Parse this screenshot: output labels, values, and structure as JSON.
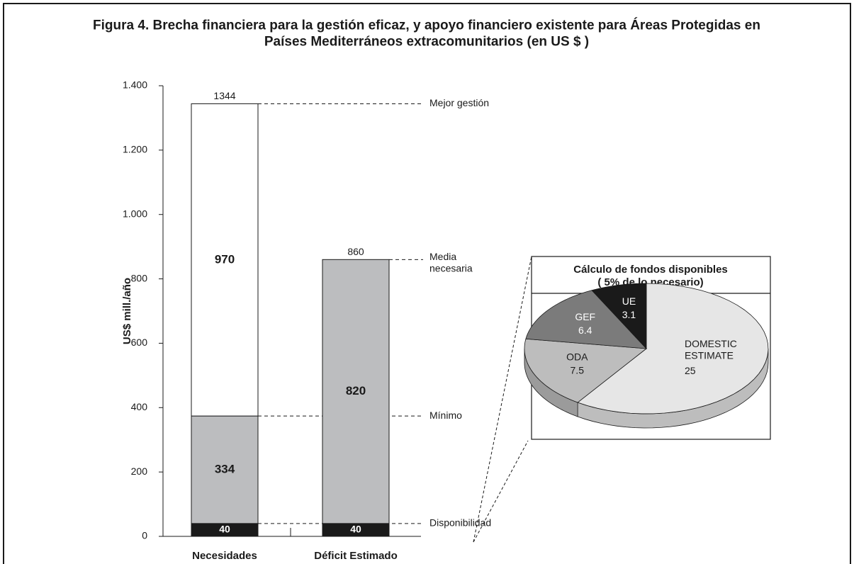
{
  "chart_data": [
    {
      "type": "stacked-bar",
      "title": "Figura 4. Brecha financiera para la gestión eficaz, y apoyo financiero existente para Áreas Protegidas en\nPaíses Mediterráneos extracomunitarios (en US $ )",
      "ylabel": "US$  mill./año",
      "categories": [
        "Necesidades",
        "Déficit Estimado"
      ],
      "series": [
        {
          "color": "#1a1a1a",
          "label_color": "#ffffff",
          "values": [
            40,
            40
          ]
        },
        {
          "color": "#bcbdbf",
          "label_color": "#1a1a1a",
          "values": [
            334,
            820
          ]
        },
        {
          "color": "#ffffff",
          "label_color": "#1a1a1a",
          "values": [
            970,
            null
          ]
        }
      ],
      "levels": [
        {
          "name": "Mejor gestión",
          "value": 1344
        },
        {
          "name": "Media\nnecesaria",
          "value": 860
        },
        {
          "name": "Mínimo",
          "value": 374
        },
        {
          "name": "Disponibilidad",
          "value": 40
        }
      ],
      "ylim": [
        0,
        1400
      ],
      "yticks": [
        0,
        200,
        400,
        600,
        800,
        {
          "value": 1000,
          "label": "1.000"
        },
        {
          "value": 1200,
          "label": "1.200"
        },
        {
          "value": 1400,
          "label": "1.400"
        }
      ]
    },
    {
      "type": "pie",
      "title": "Cálculo de fondos disponibles\n( 5% de lo necesario)",
      "categories": [
        "DOMESTIC\nESTIMATE",
        "ODA",
        "GEF",
        "UE"
      ],
      "values": [
        25,
        7.5,
        6.4,
        3.1
      ],
      "colors": [
        "#e6e6e6",
        "#bdbdbd",
        "#7b7b7b",
        "#1a1a1a"
      ],
      "label_colors": [
        "#1a1a1a",
        "#1a1a1a",
        "#ffffff",
        "#ffffff"
      ]
    }
  ]
}
